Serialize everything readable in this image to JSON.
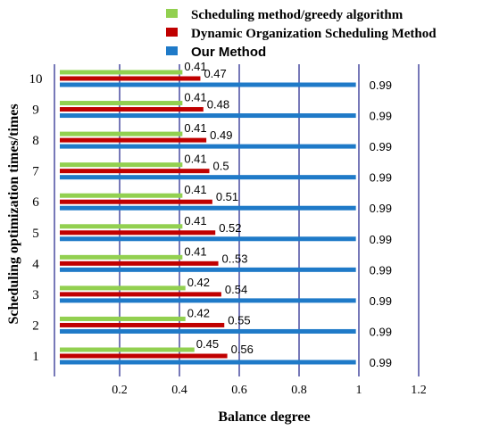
{
  "colors": {
    "greedy": "#92d050",
    "dynamic": "#c00000",
    "ours": "#1f7ac8",
    "grid": "#2e3192"
  },
  "chart_data": {
    "type": "bar",
    "orientation": "horizontal",
    "categories": [
      "1",
      "2",
      "3",
      "4",
      "5",
      "6",
      "7",
      "8",
      "9",
      "10"
    ],
    "series": [
      {
        "name": "Scheduling method/greedy algorithm",
        "values": [
          0.45,
          0.42,
          0.42,
          0.41,
          0.41,
          0.41,
          0.41,
          0.41,
          0.41,
          0.41
        ]
      },
      {
        "name": "Dynamic Organization Scheduling Method",
        "values": [
          0.56,
          0.55,
          0.54,
          0.53,
          0.52,
          0.51,
          0.5,
          0.49,
          0.48,
          0.47
        ]
      },
      {
        "name": "Our Method",
        "values": [
          0.99,
          0.99,
          0.99,
          0.99,
          0.99,
          0.99,
          0.99,
          0.99,
          0.99,
          0.99
        ]
      }
    ],
    "data_labels": {
      "greedy": [
        "0.45",
        "0.42",
        "0.42",
        "0.41",
        "0.41",
        "0.41",
        "0.41",
        "0.41",
        "0.41",
        "0.41"
      ],
      "dynamic": [
        "0.56",
        "0.55",
        "0.54",
        "0..53",
        "0.52",
        "0.51",
        "0.5",
        "0.49",
        "0.48",
        "0.47"
      ],
      "ours": [
        "0.99",
        "0.99",
        "0.99",
        "0.99",
        "0.99",
        "0.99",
        "0.99",
        "0.99",
        "0.99",
        "0.99"
      ]
    },
    "xlabel": "Balance degree",
    "ylabel": "Scheduling optimization times/times",
    "xticks": [
      "0.2",
      "0.4",
      "0.6",
      "0.8",
      "1",
      "1.2"
    ],
    "xlim": [
      0,
      1.2
    ],
    "grid": "vertical",
    "legend": "top-right"
  }
}
